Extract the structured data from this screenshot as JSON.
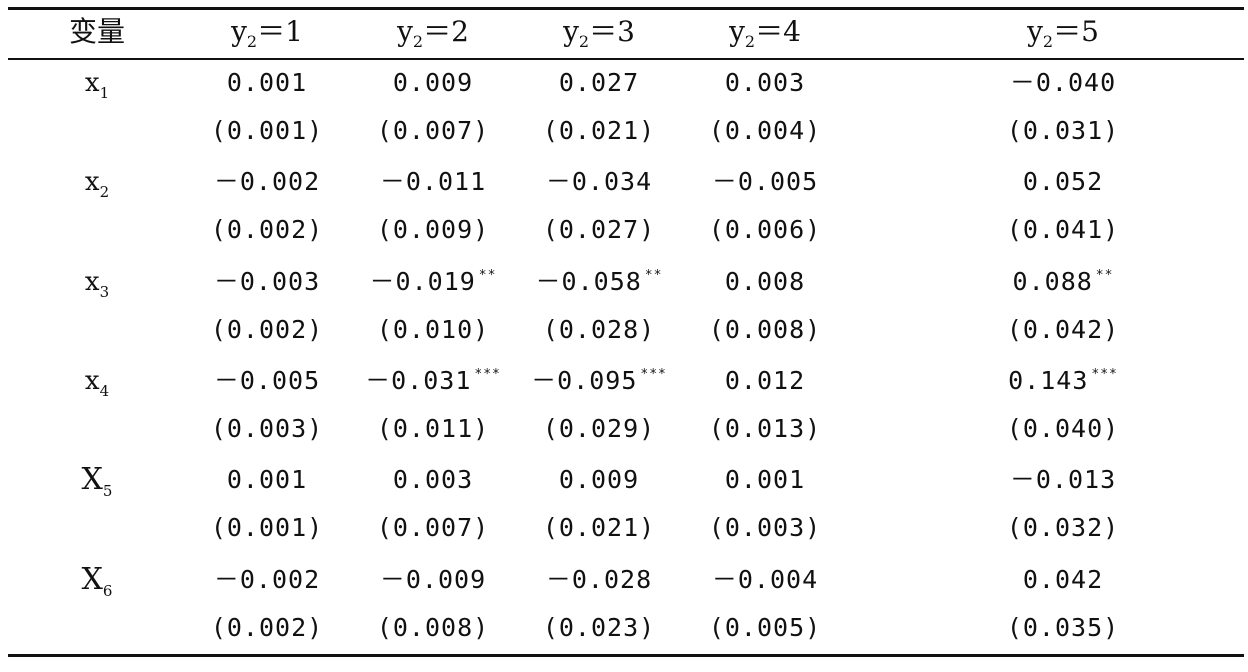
{
  "header": {
    "var_label": "变量",
    "columns": [
      {
        "base": "y",
        "sub": "2",
        "rest": "＝1"
      },
      {
        "base": "y",
        "sub": "2",
        "rest": "＝2"
      },
      {
        "base": "y",
        "sub": "2",
        "rest": "＝3"
      },
      {
        "base": "y",
        "sub": "2",
        "rest": "＝4"
      },
      {
        "base": "y",
        "sub": "2",
        "rest": "＝5"
      }
    ]
  },
  "rows": [
    {
      "var": {
        "base": "x",
        "sub": "1"
      },
      "coef": [
        {
          "v": "0.001",
          "s": ""
        },
        {
          "v": "0.009",
          "s": ""
        },
        {
          "v": "0.027",
          "s": ""
        },
        {
          "v": "0.003",
          "s": ""
        },
        {
          "v": "－0.040",
          "s": ""
        }
      ],
      "se": [
        "(0.001)",
        "(0.007)",
        "(0.021)",
        "(0.004)",
        "(0.031)"
      ]
    },
    {
      "var": {
        "base": "x",
        "sub": "2"
      },
      "coef": [
        {
          "v": "－0.002",
          "s": ""
        },
        {
          "v": "－0.011",
          "s": ""
        },
        {
          "v": "－0.034",
          "s": ""
        },
        {
          "v": "－0.005",
          "s": ""
        },
        {
          "v": "0.052",
          "s": ""
        }
      ],
      "se": [
        "(0.002)",
        "(0.009)",
        "(0.027)",
        "(0.006)",
        "(0.041)"
      ]
    },
    {
      "var": {
        "base": "x",
        "sub": "3"
      },
      "coef": [
        {
          "v": "－0.003",
          "s": ""
        },
        {
          "v": "－0.019",
          "s": "**"
        },
        {
          "v": "－0.058",
          "s": "**"
        },
        {
          "v": "0.008",
          "s": ""
        },
        {
          "v": "0.088",
          "s": "**"
        }
      ],
      "se": [
        "(0.002)",
        "(0.010)",
        "(0.028)",
        "(0.008)",
        "(0.042)"
      ]
    },
    {
      "var": {
        "base": "x",
        "sub": "4"
      },
      "coef": [
        {
          "v": "－0.005",
          "s": ""
        },
        {
          "v": "－0.031",
          "s": "***"
        },
        {
          "v": "－0.095",
          "s": "***"
        },
        {
          "v": "0.012",
          "s": ""
        },
        {
          "v": "0.143",
          "s": "***"
        }
      ],
      "se": [
        "(0.003)",
        "(0.011)",
        "(0.029)",
        "(0.013)",
        "(0.040)"
      ]
    },
    {
      "var": {
        "base": "X",
        "sub": "5"
      },
      "coef": [
        {
          "v": "0.001",
          "s": ""
        },
        {
          "v": "0.003",
          "s": ""
        },
        {
          "v": "0.009",
          "s": ""
        },
        {
          "v": "0.001",
          "s": ""
        },
        {
          "v": "－0.013",
          "s": ""
        }
      ],
      "se": [
        "(0.001)",
        "(0.007)",
        "(0.021)",
        "(0.003)",
        "(0.032)"
      ]
    },
    {
      "var": {
        "base": "X",
        "sub": "6"
      },
      "coef": [
        {
          "v": "－0.002",
          "s": ""
        },
        {
          "v": "－0.009",
          "s": ""
        },
        {
          "v": "－0.028",
          "s": ""
        },
        {
          "v": "－0.004",
          "s": ""
        },
        {
          "v": "0.042",
          "s": ""
        }
      ],
      "se": [
        "(0.002)",
        "(0.008)",
        "(0.023)",
        "(0.005)",
        "(0.035)"
      ]
    }
  ]
}
